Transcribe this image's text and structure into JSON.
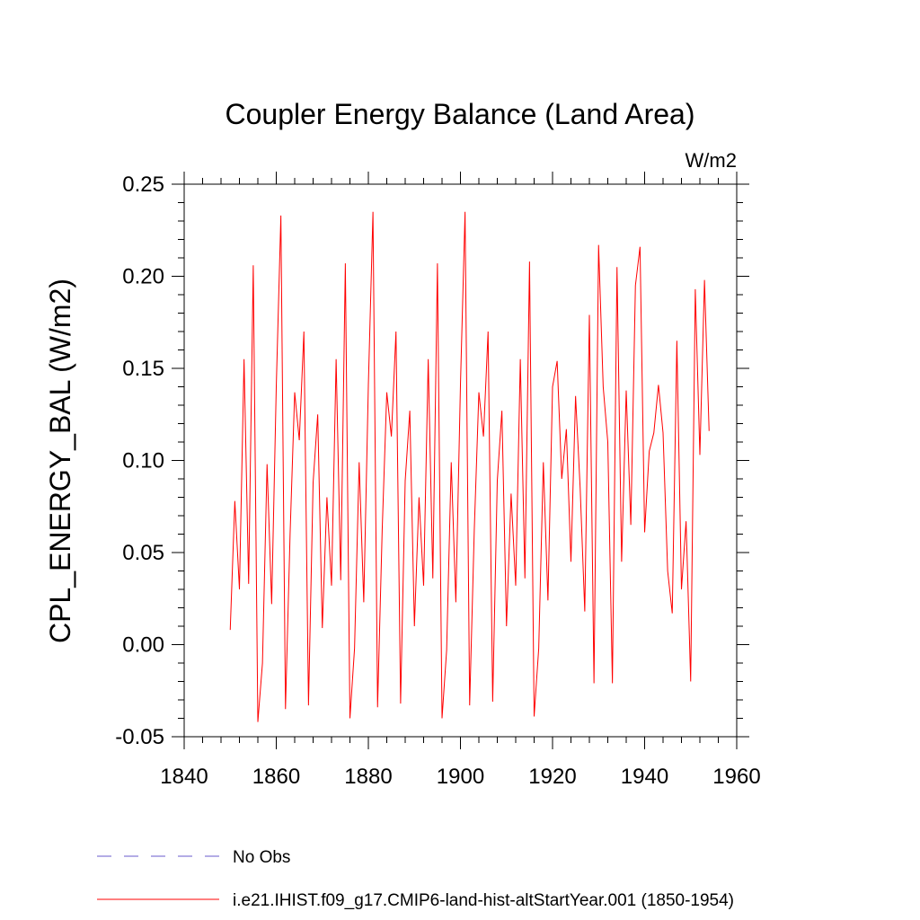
{
  "chart_data": {
    "type": "line",
    "title": "Coupler Energy Balance (Land Area)",
    "units_label": "W/m2",
    "ylabel": "CPL_ENERGY_BAL  (W/m2)",
    "xlabel": "",
    "xlim": [
      1840,
      1960
    ],
    "ylim": [
      -0.05,
      0.25
    ],
    "xticks": [
      1840,
      1860,
      1880,
      1900,
      1920,
      1940,
      1960
    ],
    "xtick_labels": [
      "1840",
      "1860",
      "1880",
      "1900",
      "1920",
      "1940",
      "1960"
    ],
    "yticks": [
      -0.05,
      0.0,
      0.05,
      0.1,
      0.15,
      0.2,
      0.25
    ],
    "ytick_labels": [
      "-0.05",
      "0.00",
      "0.05",
      "0.10",
      "0.15",
      "0.20",
      "0.25"
    ],
    "grid": false,
    "legend_position": "bottom-left",
    "series": [
      {
        "name": "No Obs",
        "color": "#6a5acd",
        "dash": "dashed",
        "values": []
      },
      {
        "name": "i.e21.IHIST.f09_g17.CMIP6-land-hist-altStartYear.001 (1850-1954)",
        "color": "#ff0000",
        "dash": "solid",
        "x_start": 1850,
        "x_step": 1,
        "values": [
          0.008,
          0.078,
          0.03,
          0.155,
          0.033,
          0.206,
          -0.042,
          -0.01,
          0.098,
          0.022,
          0.14,
          0.233,
          -0.035,
          0.06,
          0.137,
          0.111,
          0.17,
          -0.033,
          0.088,
          0.125,
          0.009,
          0.08,
          0.032,
          0.155,
          0.035,
          0.207,
          -0.04,
          -0.002,
          0.099,
          0.023,
          0.141,
          0.235,
          -0.034,
          0.062,
          0.137,
          0.113,
          0.17,
          -0.032,
          0.089,
          0.127,
          0.01,
          0.08,
          0.032,
          0.155,
          0.036,
          0.207,
          -0.04,
          -0.003,
          0.099,
          0.023,
          0.141,
          0.235,
          -0.033,
          0.062,
          0.137,
          0.113,
          0.17,
          -0.031,
          0.089,
          0.127,
          0.01,
          0.082,
          0.032,
          0.155,
          0.036,
          0.208,
          -0.039,
          -0.002,
          0.099,
          0.024,
          0.14,
          0.154,
          0.09,
          0.117,
          0.045,
          0.135,
          0.085,
          0.018,
          0.179,
          -0.021,
          0.217,
          0.14,
          0.11,
          -0.021,
          0.205,
          0.045,
          0.138,
          0.065,
          0.195,
          0.216,
          0.061,
          0.105,
          0.115,
          0.141,
          0.115,
          0.04,
          0.017,
          0.165,
          0.03,
          0.067,
          -0.02,
          0.193,
          0.103,
          0.198,
          0.116
        ]
      }
    ]
  }
}
